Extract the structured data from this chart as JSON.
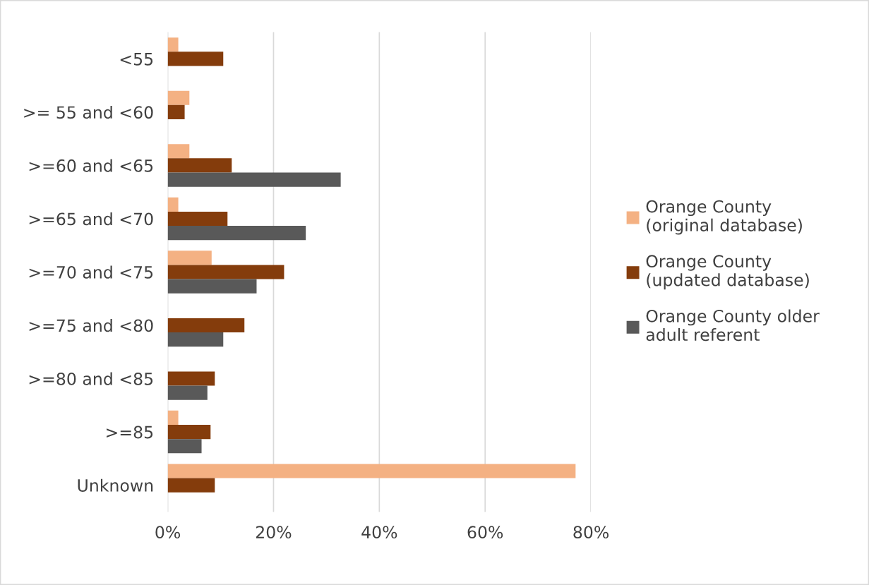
{
  "chart_data": {
    "type": "bar",
    "orientation": "horizontal",
    "categories": [
      "<55",
      ">= 55 and <60",
      ">=60 and <65",
      ">=65 and <70",
      ">=70 and <75",
      ">=75 and <80",
      ">=80 and <85",
      ">=85",
      "Unknown"
    ],
    "series": [
      {
        "name": "Orange County\n(original database)",
        "color": "#f4b183",
        "values": [
          2,
          4.1,
          4.1,
          2,
          8.3,
          null,
          null,
          2,
          77.1
        ]
      },
      {
        "name": "Orange County\n(updated database)",
        "color": "#843c0c",
        "values": [
          10.5,
          3.2,
          12.1,
          11.3,
          22,
          14.5,
          8.9,
          8.1,
          8.9
        ]
      },
      {
        "name": "Orange County older\nadult referent",
        "color": "#595959",
        "values": [
          null,
          null,
          32.7,
          26.1,
          16.8,
          10.5,
          7.5,
          6.4,
          null
        ]
      }
    ],
    "xlim": [
      0,
      80
    ],
    "xticks": [
      {
        "value": 0,
        "label": "0%"
      },
      {
        "value": 20,
        "label": "20%"
      },
      {
        "value": 40,
        "label": "40%"
      },
      {
        "value": 60,
        "label": "60%"
      },
      {
        "value": 80,
        "label": "80%"
      }
    ],
    "grid": "x",
    "legend": "right"
  }
}
